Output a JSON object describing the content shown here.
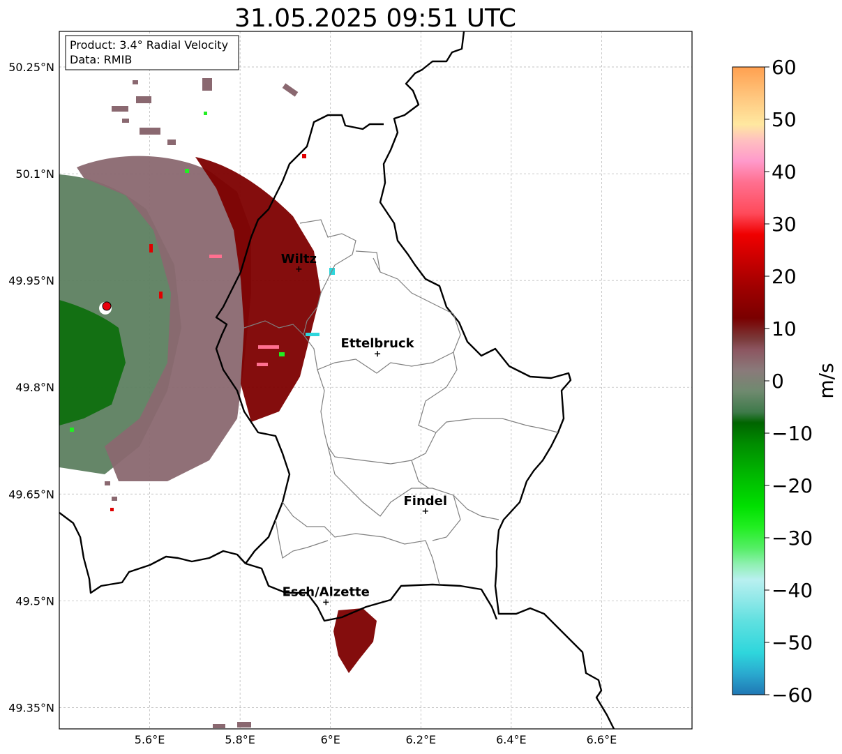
{
  "title": "31.05.2025 09:51 UTC",
  "info_box": {
    "product": "Product: 3.4° Radial Velocity",
    "data": "Data: RMIB"
  },
  "map": {
    "lon_range": [
      5.4,
      6.8
    ],
    "lat_range": [
      49.32,
      50.3
    ],
    "lat_ticks": [
      {
        "value": 50.25,
        "label": "50.25°N"
      },
      {
        "value": 50.1,
        "label": "50.1°N"
      },
      {
        "value": 49.95,
        "label": "49.95°N"
      },
      {
        "value": 49.8,
        "label": "49.8°N"
      },
      {
        "value": 49.65,
        "label": "49.65°N"
      },
      {
        "value": 49.5,
        "label": "49.5°N"
      },
      {
        "value": 49.35,
        "label": "49.35°N"
      }
    ],
    "lon_ticks": [
      {
        "value": 5.6,
        "label": "5.6°E"
      },
      {
        "value": 5.8,
        "label": "5.8°E"
      },
      {
        "value": 6.0,
        "label": "6°E"
      },
      {
        "value": 6.2,
        "label": "6.2°E"
      },
      {
        "value": 6.4,
        "label": "6.4°E"
      },
      {
        "value": 6.6,
        "label": "6.6°E"
      }
    ],
    "gridlines": true,
    "radar_site": {
      "lon": 5.505,
      "lat": 49.914,
      "color": "#e8000b"
    },
    "cities": [
      {
        "name": "Wiltz",
        "lon": 5.93,
        "lat": 49.966
      },
      {
        "name": "Ettelbruck",
        "lon": 6.104,
        "lat": 49.847
      },
      {
        "name": "Findel",
        "lon": 6.21,
        "lat": 49.626
      },
      {
        "name": "Esch/Alzette",
        "lon": 5.99,
        "lat": 49.498
      }
    ]
  },
  "colorbar": {
    "label": "m/s",
    "min": -60,
    "max": 60,
    "ticks": [
      {
        "value": 60,
        "label": "60"
      },
      {
        "value": 50,
        "label": "50"
      },
      {
        "value": 40,
        "label": "40"
      },
      {
        "value": 30,
        "label": "30"
      },
      {
        "value": 20,
        "label": "20"
      },
      {
        "value": 10,
        "label": "10"
      },
      {
        "value": 0,
        "label": "0"
      },
      {
        "value": -10,
        "label": "−10"
      },
      {
        "value": -20,
        "label": "−20"
      },
      {
        "value": -30,
        "label": "−30"
      },
      {
        "value": -40,
        "label": "−40"
      },
      {
        "value": -50,
        "label": "−50"
      },
      {
        "value": -60,
        "label": "−60"
      }
    ],
    "stops": [
      {
        "value": -60,
        "color": "#1f77b4"
      },
      {
        "value": -56,
        "color": "#2aa9cf"
      },
      {
        "value": -52,
        "color": "#2ed6dc"
      },
      {
        "value": -46,
        "color": "#5fe0e0"
      },
      {
        "value": -42,
        "color": "#8ee8e8"
      },
      {
        "value": -38,
        "color": "#b9f0f0"
      },
      {
        "value": -35,
        "color": "#8ef0b0"
      },
      {
        "value": -32,
        "color": "#55ee66"
      },
      {
        "value": -28,
        "color": "#22ee22"
      },
      {
        "value": -24,
        "color": "#00e000"
      },
      {
        "value": -18,
        "color": "#00b800"
      },
      {
        "value": -12,
        "color": "#008c00"
      },
      {
        "value": -8,
        "color": "#006400"
      },
      {
        "value": -6,
        "color": "#3e7a4a"
      },
      {
        "value": -2,
        "color": "#6f8a6f"
      },
      {
        "value": 2,
        "color": "#8a7a7a"
      },
      {
        "value": 6,
        "color": "#8c5560"
      },
      {
        "value": 8,
        "color": "#7a3a3a"
      },
      {
        "value": 12,
        "color": "#7a0000"
      },
      {
        "value": 18,
        "color": "#a00000"
      },
      {
        "value": 24,
        "color": "#d00000"
      },
      {
        "value": 28,
        "color": "#f00000"
      },
      {
        "value": 32,
        "color": "#ff4a5a"
      },
      {
        "value": 38,
        "color": "#ff7090"
      },
      {
        "value": 42,
        "color": "#ff9acb"
      },
      {
        "value": 46,
        "color": "#ffc0c0"
      },
      {
        "value": 49,
        "color": "#ffe8a0"
      },
      {
        "value": 54,
        "color": "#ffc880"
      },
      {
        "value": 60,
        "color": "#ffa050"
      }
    ]
  }
}
